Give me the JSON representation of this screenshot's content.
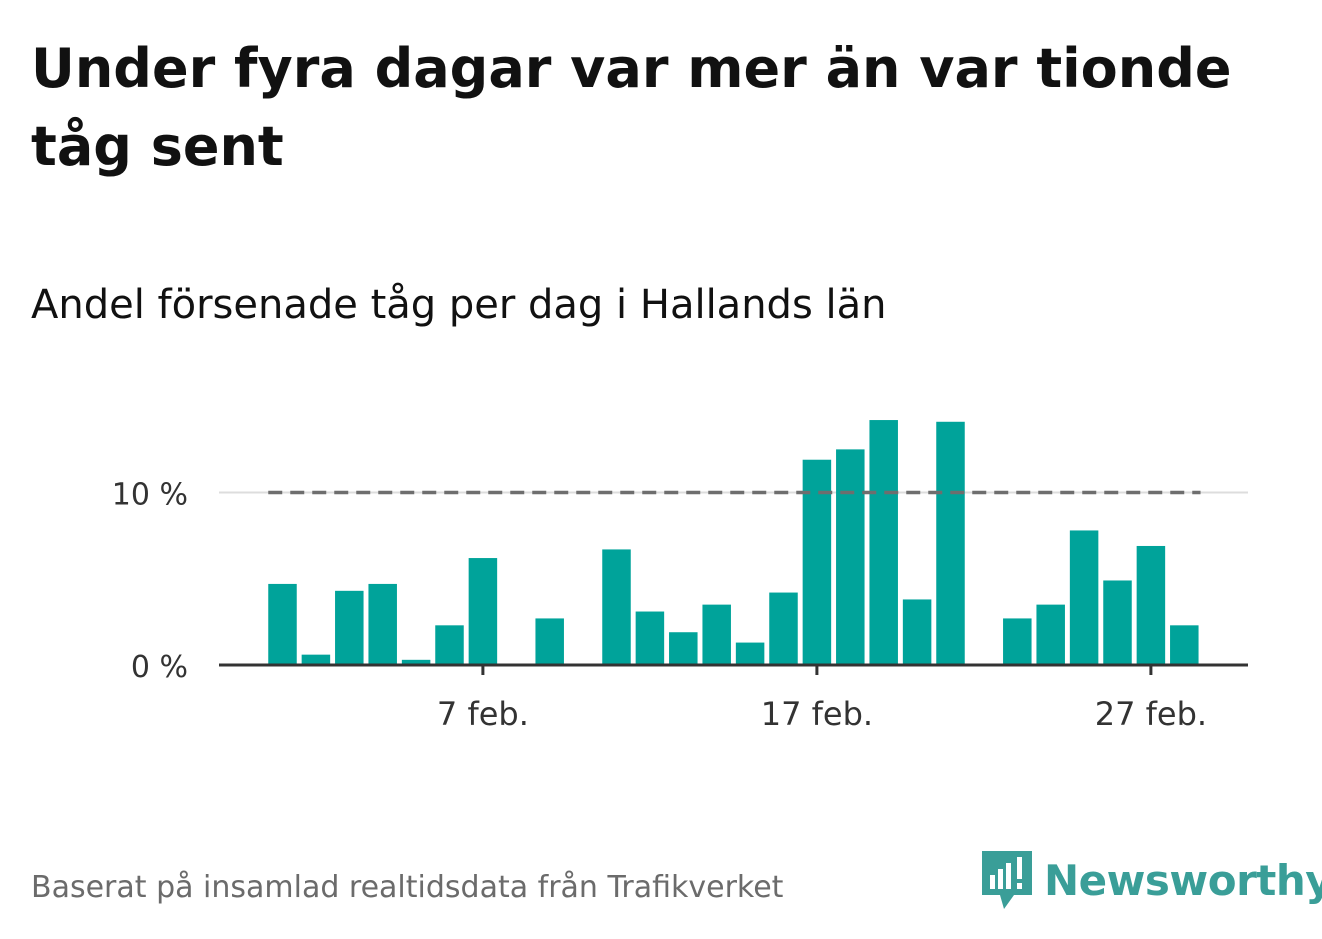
{
  "title": "Under fyra dagar var mer än var tionde tåg sent",
  "subtitle": "Andel försenade tåg per dag i Hallands län",
  "footer": "Baserat på insamlad realtidsdata från Trafikverket",
  "brand": "Newsworthy",
  "colors": {
    "bar": "#00a39a",
    "threshold": "#6e6e6e",
    "axis": "#333333",
    "grid": "#dddddd",
    "brand": "#3a9e98"
  },
  "chart_data": {
    "type": "bar",
    "x": [
      "2024-02-01",
      "2024-02-02",
      "2024-02-03",
      "2024-02-04",
      "2024-02-05",
      "2024-02-06",
      "2024-02-07",
      "2024-02-08",
      "2024-02-09",
      "2024-02-10",
      "2024-02-11",
      "2024-02-12",
      "2024-02-13",
      "2024-02-14",
      "2024-02-15",
      "2024-02-16",
      "2024-02-17",
      "2024-02-18",
      "2024-02-19",
      "2024-02-20",
      "2024-02-21",
      "2024-02-22",
      "2024-02-23",
      "2024-02-24",
      "2024-02-25",
      "2024-02-26",
      "2024-02-27",
      "2024-02-28"
    ],
    "values": [
      4.7,
      0.6,
      4.3,
      4.7,
      0.3,
      2.3,
      6.2,
      null,
      2.7,
      null,
      6.7,
      3.1,
      1.9,
      3.5,
      1.3,
      4.2,
      11.9,
      12.5,
      14.2,
      3.8,
      14.1,
      null,
      2.7,
      3.5,
      7.8,
      4.9,
      6.9,
      2.3
    ],
    "xtick_labels": [
      "7 feb.",
      "17 feb.",
      "27 feb."
    ],
    "xtick_dates": [
      "2024-02-07",
      "2024-02-17",
      "2024-02-27"
    ],
    "ytick_labels": [
      "0 %",
      "10 %"
    ],
    "yticks": [
      0,
      10
    ],
    "ylim": [
      0,
      14.5
    ],
    "threshold": 10,
    "xlabel": "",
    "ylabel": "",
    "grid": true
  }
}
